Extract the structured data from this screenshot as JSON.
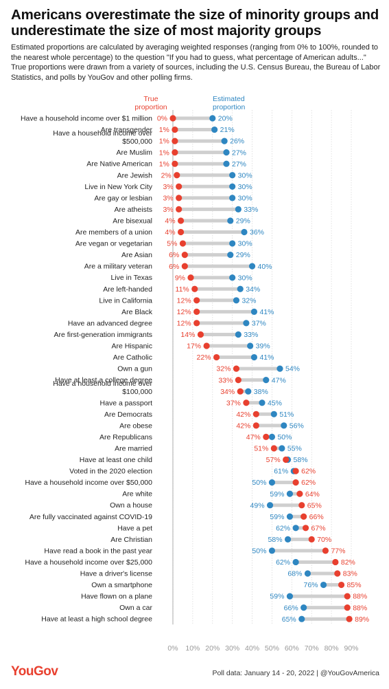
{
  "title": "Americans overestimate the size of minority groups and underestimate the size of most majority groups",
  "subtitle": "Estimated proportions are calculated by averaging weighted responses (ranging from 0% to 100%, rounded to the nearest whole percentage) to the question \"If you had to guess, what percentage of American adults...\" True proportions were drawn from a variety of sources, including the U.S. Census Bureau, the Bureau of Labor Statistics, and polls by YouGov and other polling firms.",
  "footer": {
    "brand": "YouGov",
    "note": "Poll data: January 14 - 20, 2022 | @YouGovAmerica"
  },
  "colors": {
    "true": "#e8402f",
    "estimated": "#2e86c1",
    "connector": "#cfcfcf",
    "grid": "#d9d9d9"
  },
  "chart_data": {
    "type": "dumbbell",
    "xlim": [
      0,
      90
    ],
    "x_ticks": [
      "0%",
      "10%",
      "20%",
      "30%",
      "40%",
      "50%",
      "60%",
      "70%",
      "80%",
      "90%"
    ],
    "x_tick_values": [
      0,
      10,
      20,
      30,
      40,
      50,
      60,
      70,
      80,
      90
    ],
    "grid": true,
    "series_labels": {
      "true": [
        "True",
        "proportion"
      ],
      "estimated": [
        "Estimated",
        "proportion"
      ]
    },
    "rows": [
      {
        "label": [
          "Have a household income over $1 million"
        ],
        "true": 0,
        "est": 20
      },
      {
        "label": [
          "Are transgender"
        ],
        "true": 1,
        "est": 21
      },
      {
        "label": [
          "Have a household income over",
          "$500,000"
        ],
        "true": 1,
        "est": 26
      },
      {
        "label": [
          "Are Muslim"
        ],
        "true": 1,
        "est": 27
      },
      {
        "label": [
          "Are Native American"
        ],
        "true": 1,
        "est": 27
      },
      {
        "label": [
          "Are Jewish"
        ],
        "true": 2,
        "est": 30
      },
      {
        "label": [
          "Live in New York City"
        ],
        "true": 3,
        "est": 30
      },
      {
        "label": [
          "Are gay or lesbian"
        ],
        "true": 3,
        "est": 30
      },
      {
        "label": [
          "Are atheists"
        ],
        "true": 3,
        "est": 33
      },
      {
        "label": [
          "Are bisexual"
        ],
        "true": 4,
        "est": 29
      },
      {
        "label": [
          "Are members of a union"
        ],
        "true": 4,
        "est": 36
      },
      {
        "label": [
          "Are vegan or vegetarian"
        ],
        "true": 5,
        "est": 30
      },
      {
        "label": [
          "Are Asian"
        ],
        "true": 6,
        "est": 29
      },
      {
        "label": [
          "Are a military veteran"
        ],
        "true": 6,
        "est": 40
      },
      {
        "label": [
          "Live in Texas"
        ],
        "true": 9,
        "est": 30
      },
      {
        "label": [
          "Are left-handed"
        ],
        "true": 11,
        "est": 34
      },
      {
        "label": [
          "Live in California"
        ],
        "true": 12,
        "est": 32
      },
      {
        "label": [
          "Are Black"
        ],
        "true": 12,
        "est": 41
      },
      {
        "label": [
          "Have an advanced degree"
        ],
        "true": 12,
        "est": 37
      },
      {
        "label": [
          "Are first-generation immigrants"
        ],
        "true": 14,
        "est": 33
      },
      {
        "label": [
          "Are Hispanic"
        ],
        "true": 17,
        "est": 39
      },
      {
        "label": [
          "Are Catholic"
        ],
        "true": 22,
        "est": 41
      },
      {
        "label": [
          "Own a gun"
        ],
        "true": 32,
        "est": 54
      },
      {
        "label": [
          "Have at least a college degree"
        ],
        "true": 33,
        "est": 47
      },
      {
        "label": [
          "Have a household income over",
          "$100,000"
        ],
        "true": 34,
        "est": 38
      },
      {
        "label": [
          "Have a passport"
        ],
        "true": 37,
        "est": 45
      },
      {
        "label": [
          "Are Democrats"
        ],
        "true": 42,
        "est": 51
      },
      {
        "label": [
          "Are obese"
        ],
        "true": 42,
        "est": 56
      },
      {
        "label": [
          "Are Republicans"
        ],
        "true": 47,
        "est": 50
      },
      {
        "label": [
          "Are married"
        ],
        "true": 51,
        "est": 55
      },
      {
        "label": [
          "Have at least one child"
        ],
        "true": 57,
        "est": 58
      },
      {
        "label": [
          "Voted in the 2020 election"
        ],
        "true": 62,
        "est": 61
      },
      {
        "label": [
          "Have a household income over $50,000"
        ],
        "true": 62,
        "est": 50
      },
      {
        "label": [
          "Are white"
        ],
        "true": 64,
        "est": 59
      },
      {
        "label": [
          "Own a house"
        ],
        "true": 65,
        "est": 49
      },
      {
        "label": [
          "Are fully vaccinated against COVID-19"
        ],
        "true": 66,
        "est": 59
      },
      {
        "label": [
          "Have a pet"
        ],
        "true": 67,
        "est": 62
      },
      {
        "label": [
          "Are Christian"
        ],
        "true": 70,
        "est": 58
      },
      {
        "label": [
          "Have read a book in the past year"
        ],
        "true": 77,
        "est": 50
      },
      {
        "label": [
          "Have a household income over $25,000"
        ],
        "true": 82,
        "est": 62
      },
      {
        "label": [
          "Have a driver's license"
        ],
        "true": 83,
        "est": 68
      },
      {
        "label": [
          "Own a smartphone"
        ],
        "true": 85,
        "est": 76
      },
      {
        "label": [
          "Have flown on a plane"
        ],
        "true": 88,
        "est": 59
      },
      {
        "label": [
          "Own a car"
        ],
        "true": 88,
        "est": 66
      },
      {
        "label": [
          "Have at least a high school degree"
        ],
        "true": 89,
        "est": 65
      }
    ]
  }
}
